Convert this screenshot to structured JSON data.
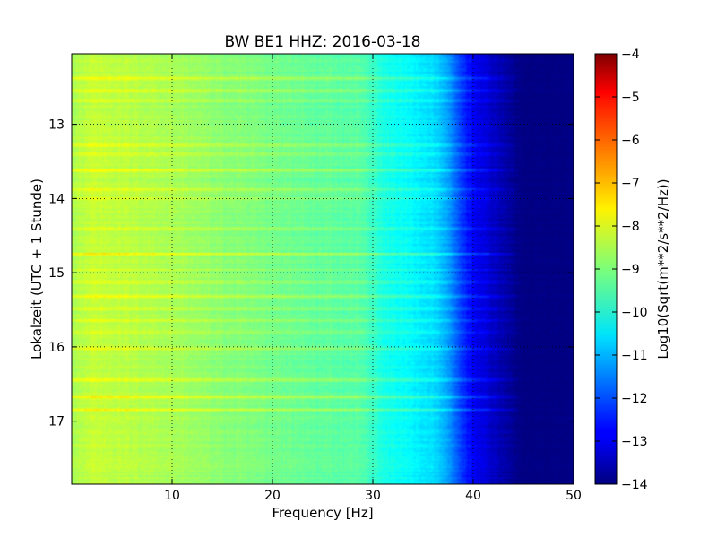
{
  "chart_data": {
    "type": "heatmap",
    "title": "BW BE1 HHZ: 2016-03-18",
    "xlabel": "Frequency [Hz]",
    "ylabel": "Lokalzeit (UTC + 1 Stunde)",
    "xlim": [
      0,
      50
    ],
    "ylim": [
      12.05,
      17.85
    ],
    "y_inverted": true,
    "x_ticks": [
      10,
      20,
      30,
      40,
      50
    ],
    "y_ticks": [
      13,
      14,
      15,
      16,
      17
    ],
    "grid": true,
    "colormap": "jet",
    "colorbar": {
      "label": "Log10(Sqrt(m**2/s**2/Hz))",
      "range": [
        -14,
        -4
      ],
      "ticks": [
        -4,
        -5,
        -6,
        -7,
        -8,
        -9,
        -10,
        -11,
        -12,
        -13,
        -14
      ]
    },
    "spectrum_profile": {
      "frequency_hz": [
        0,
        2,
        5,
        10,
        15,
        20,
        25,
        29,
        31,
        34,
        36,
        37,
        38,
        39,
        40,
        41,
        42,
        43,
        44,
        45,
        46,
        50
      ],
      "log_amplitude": [
        -8.6,
        -8.3,
        -8.4,
        -8.6,
        -8.9,
        -9.1,
        -9.3,
        -9.4,
        -10.0,
        -10.3,
        -10.6,
        -10.9,
        -11.6,
        -12.3,
        -12.8,
        -13.1,
        -13.3,
        -13.6,
        -13.8,
        -14.0,
        -14.0,
        -14.0
      ]
    },
    "bright_bands": [
      {
        "time": 12.38,
        "strength": 0.9
      },
      {
        "time": 12.55,
        "strength": 0.6
      },
      {
        "time": 12.68,
        "strength": 0.5
      },
      {
        "time": 13.28,
        "strength": 0.8
      },
      {
        "time": 13.4,
        "strength": 0.7
      },
      {
        "time": 13.62,
        "strength": 1.0
      },
      {
        "time": 13.88,
        "strength": 0.8
      },
      {
        "time": 14.0,
        "strength": 0.4
      },
      {
        "time": 14.4,
        "strength": 0.5
      },
      {
        "time": 14.75,
        "strength": 1.0
      },
      {
        "time": 14.96,
        "strength": 0.5
      },
      {
        "time": 15.12,
        "strength": 0.6
      },
      {
        "time": 15.32,
        "strength": 0.7
      },
      {
        "time": 15.48,
        "strength": 0.5
      },
      {
        "time": 15.65,
        "strength": 0.6
      },
      {
        "time": 15.8,
        "strength": 0.5
      },
      {
        "time": 16.02,
        "strength": 0.8
      },
      {
        "time": 16.45,
        "strength": 0.9
      },
      {
        "time": 16.68,
        "strength": 0.9
      },
      {
        "time": 16.85,
        "strength": 0.8
      }
    ]
  }
}
